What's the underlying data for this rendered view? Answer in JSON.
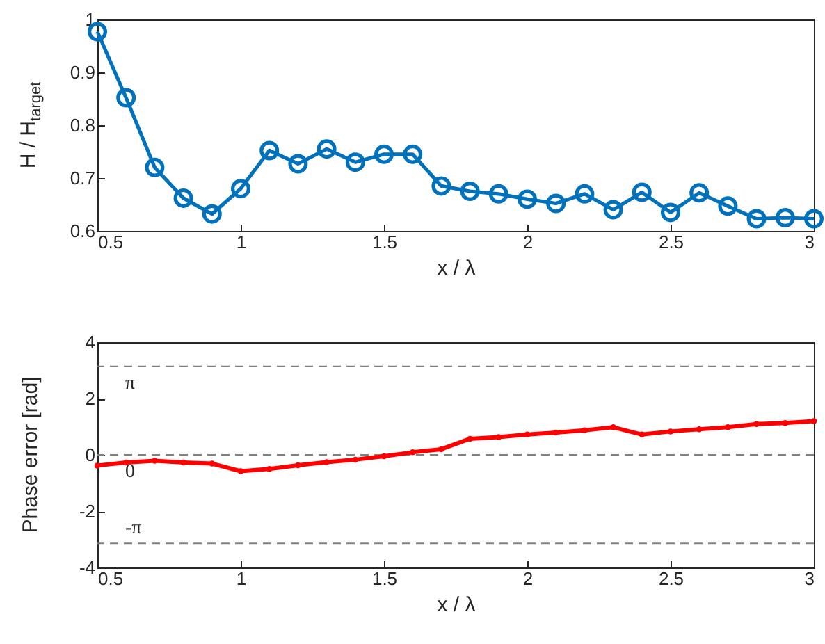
{
  "chart_data": [
    {
      "type": "line",
      "xlabel": "x / λ",
      "ylabel": "H / H$_{target}$",
      "x": [
        0.5,
        0.6,
        0.7,
        0.8,
        0.9,
        1.0,
        1.1,
        1.2,
        1.3,
        1.4,
        1.5,
        1.6,
        1.7,
        1.8,
        1.9,
        2.0,
        2.1,
        2.2,
        2.3,
        2.4,
        2.5,
        2.6,
        2.7,
        2.8,
        2.9,
        3.0
      ],
      "series": [
        {
          "color": "#0072bd",
          "marker": "circle",
          "values": [
            0.977,
            0.852,
            0.72,
            0.662,
            0.632,
            0.68,
            0.752,
            0.727,
            0.755,
            0.73,
            0.745,
            0.745,
            0.685,
            0.675,
            0.67,
            0.66,
            0.652,
            0.67,
            0.64,
            0.673,
            0.635,
            0.672,
            0.647,
            0.623,
            0.625,
            0.623
          ]
        }
      ],
      "xlim": [
        0.5,
        3
      ],
      "xticks": [
        0.5,
        1,
        1.5,
        2,
        2.5,
        3
      ],
      "ylim": [
        0.6,
        1
      ],
      "yticks": [
        0.6,
        0.7,
        0.8,
        0.9,
        1
      ],
      "grid": false,
      "legend": false
    },
    {
      "type": "line",
      "xlabel": "x / λ",
      "ylabel": "Phase error [rad]",
      "x": [
        0.5,
        0.6,
        0.7,
        0.8,
        0.9,
        1.0,
        1.1,
        1.2,
        1.3,
        1.4,
        1.5,
        1.6,
        1.7,
        1.8,
        1.9,
        2.0,
        2.1,
        2.2,
        2.3,
        2.4,
        2.5,
        2.6,
        2.7,
        2.8,
        2.9,
        3.0
      ],
      "series": [
        {
          "color": "#ff0000",
          "marker": "circle",
          "values": [
            -0.38,
            -0.27,
            -0.21,
            -0.27,
            -0.31,
            -0.58,
            -0.5,
            -0.37,
            -0.26,
            -0.17,
            -0.05,
            0.09,
            0.2,
            0.57,
            0.63,
            0.72,
            0.79,
            0.87,
            0.98,
            0.72,
            0.83,
            0.91,
            0.98,
            1.09,
            1.13,
            1.2
          ]
        }
      ],
      "xlim": [
        0.5,
        3
      ],
      "xticks": [
        0.5,
        1,
        1.5,
        2,
        2.5,
        3
      ],
      "ylim": [
        -4,
        4
      ],
      "yticks": [
        -4,
        -2,
        0,
        2,
        4
      ],
      "grid": false,
      "legend": false,
      "ref_lines": [
        {
          "axis": "y",
          "value": 3.1416,
          "label": "π",
          "color": "#808080",
          "line_style": "dashed"
        },
        {
          "axis": "y",
          "value": 0,
          "label": "0",
          "color": "#808080",
          "line_style": "dashed"
        },
        {
          "axis": "y",
          "value": -3.1416,
          "label": "-π",
          "color": "#808080",
          "line_style": "dashed"
        }
      ]
    }
  ]
}
